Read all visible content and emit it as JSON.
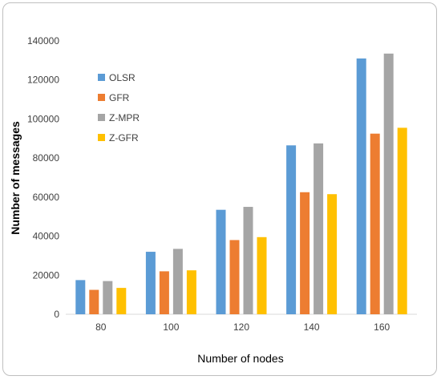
{
  "chart_data": {
    "type": "bar",
    "title": "",
    "xlabel": "Number of nodes",
    "ylabel": "Number of messages",
    "categories": [
      "80",
      "100",
      "120",
      "140",
      "160"
    ],
    "ylim": [
      0,
      140000
    ],
    "ytick_step": 20000,
    "yticks": [
      "0",
      "20000",
      "40000",
      "60000",
      "80000",
      "100000",
      "120000",
      "140000"
    ],
    "grid": false,
    "legend_position": "top-left",
    "series": [
      {
        "name": "OLSR",
        "color": "#5b9bd5",
        "values": [
          17500,
          32000,
          53500,
          86500,
          131000
        ]
      },
      {
        "name": "GFR",
        "color": "#ed7d31",
        "values": [
          12500,
          22000,
          38000,
          62500,
          92500
        ]
      },
      {
        "name": "Z-MPR",
        "color": "#a5a5a5",
        "values": [
          17000,
          33500,
          55000,
          87500,
          133500
        ]
      },
      {
        "name": "Z-GFR",
        "color": "#ffc000",
        "values": [
          13500,
          22500,
          39500,
          61500,
          95500
        ]
      }
    ]
  }
}
